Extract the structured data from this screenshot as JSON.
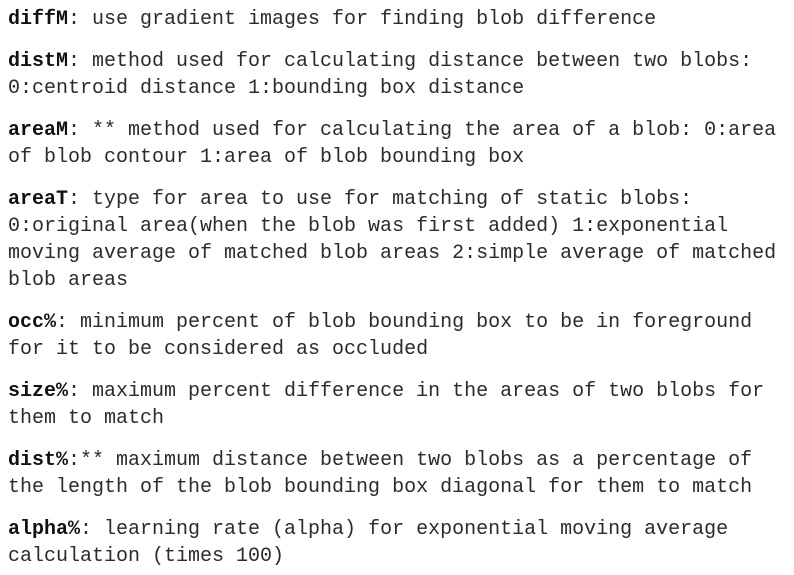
{
  "items": [
    {
      "term": "diffM",
      "text": ": use gradient images for finding blob difference"
    },
    {
      "term": "distM",
      "text": ": method used for calculating distance between two blobs: 0:centroid distance 1:bounding box distance"
    },
    {
      "term": "areaM",
      "text": ": ** method used for calculating the area of a blob: 0:area of blob contour 1:area of blob bounding box"
    },
    {
      "term": "areaT",
      "text": ": type for area to use for matching of static blobs: 0:original area(when the blob was first added) 1:exponential moving average of matched blob areas 2:simple average of matched blob areas"
    },
    {
      "term": "occ%",
      "text": ": minimum percent of blob bounding box to be in foreground for it to be considered as occluded"
    },
    {
      "term": "size%",
      "text": ": maximum percent difference in the areas of two blobs for them to match"
    },
    {
      "term": "dist%",
      "text": ":** maximum distance between two blobs as a percentage of the length of the blob bounding box diagonal for them to match"
    },
    {
      "term": "alpha%",
      "text": ": learning rate (alpha) for exponential moving average calculation (times 100)"
    }
  ]
}
